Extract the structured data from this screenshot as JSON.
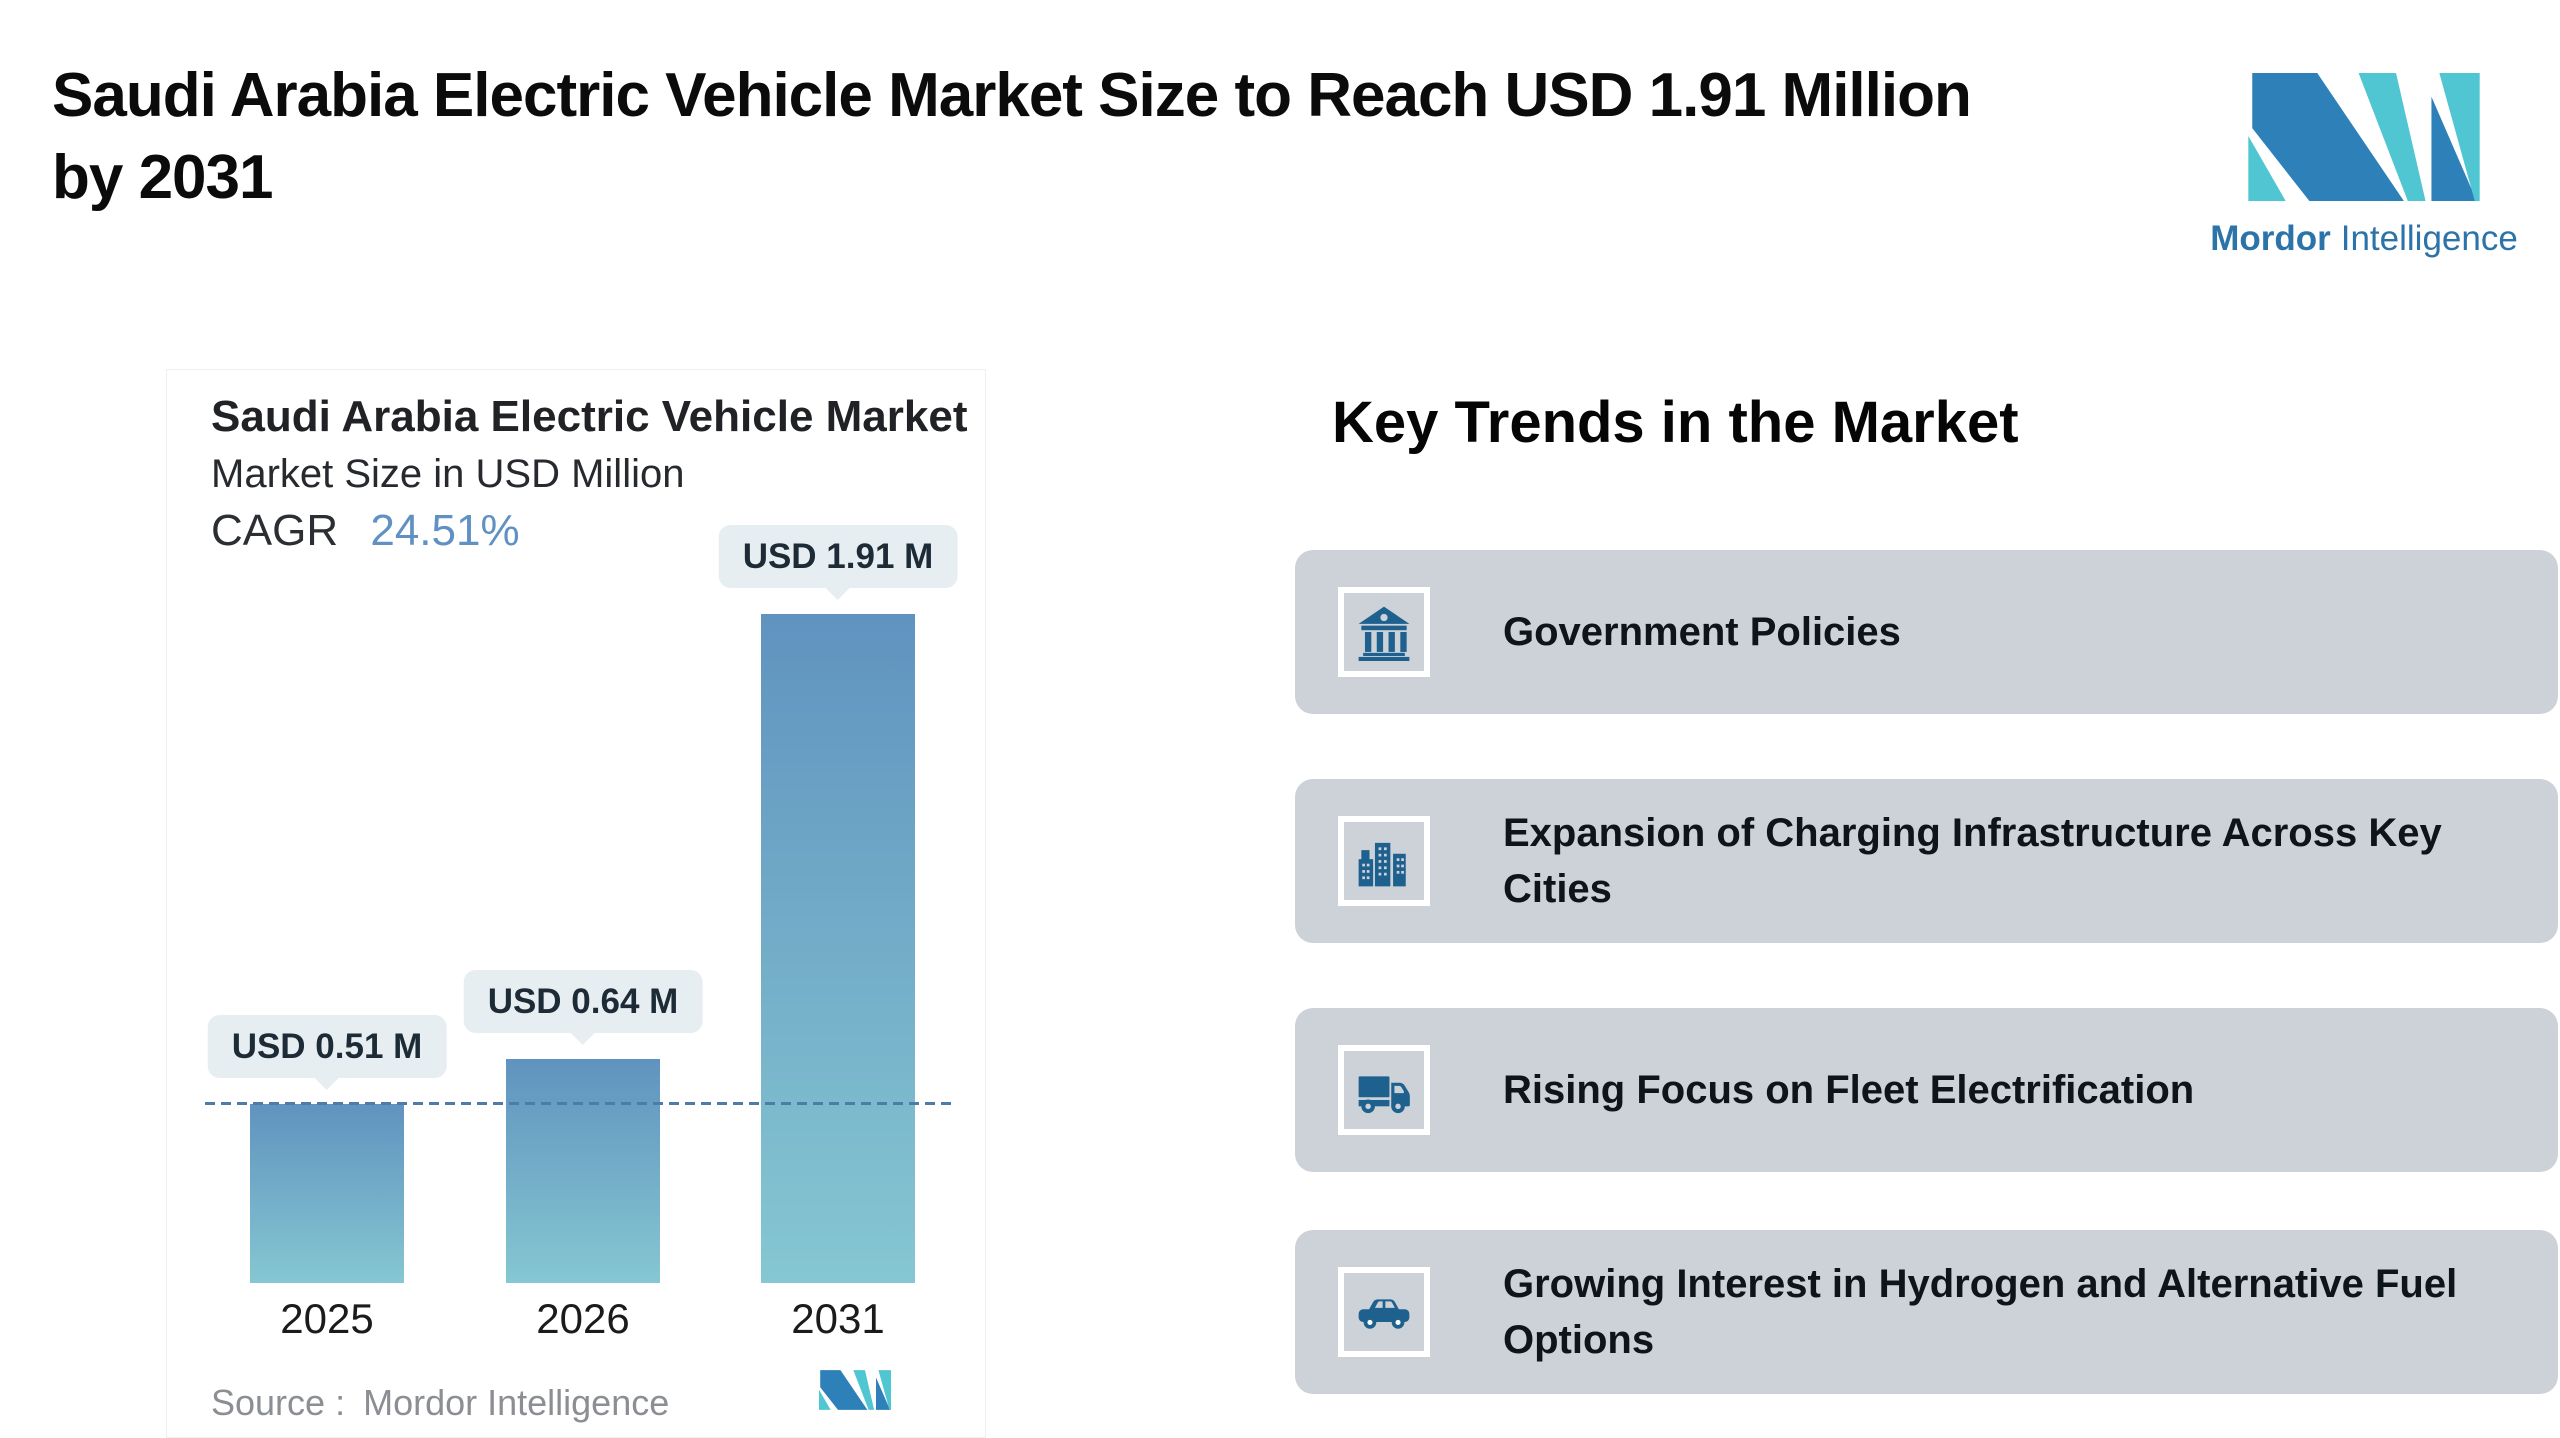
{
  "header": {
    "title_line1": "Saudi Arabia Electric Vehicle Market Size to Reach USD 1.91 Million",
    "title_line2": "by 2031"
  },
  "logo": {
    "brand_bold": "Mordor",
    "brand_light": "Intelligence"
  },
  "chart_data": {
    "type": "bar",
    "title": "Saudi Arabia Electric Vehicle Market",
    "subtitle": "Market Size in USD Million",
    "cagr_label": "CAGR",
    "cagr_value": "24.51%",
    "unit": "USD Million",
    "categories": [
      "2025",
      "2026",
      "2031"
    ],
    "values": [
      0.51,
      0.64,
      1.91
    ],
    "bar_labels": [
      "USD 0.51 M",
      "USD 0.64 M",
      "USD 1.91 M"
    ],
    "ylim": [
      0,
      2
    ],
    "grid": false,
    "legend": "none",
    "reference_line": {
      "style": "dashed",
      "value": 0.51
    },
    "source_prefix": "Source :",
    "source": "Mordor Intelligence"
  },
  "key_trends": {
    "heading": "Key Trends in the Market",
    "items": [
      {
        "icon": "bank-icon",
        "lines": [
          "Government Policies"
        ]
      },
      {
        "icon": "city-buildings-icon",
        "lines": [
          "Expansion of Charging Infrastructure Across Key",
          "Cities"
        ]
      },
      {
        "icon": "truck-icon",
        "lines": [
          "Rising Focus on Fleet Electrification"
        ]
      },
      {
        "icon": "car-icon",
        "lines": [
          "Growing Interest in Hydrogen and Alternative Fuel",
          "Options"
        ]
      }
    ]
  },
  "colors": {
    "bar_gradient_top": "#6093bf",
    "bar_gradient_bottom": "#85c7d2",
    "dashed_line": "#4e7ca8",
    "cagr_accent": "#6091c2",
    "tooltip_bg": "#e7eef2",
    "tooltip_text": "#1c2b36",
    "card_bg": "#cdd2d9",
    "icon_blue": "#1f618e",
    "logo_blue": "#2e80b9",
    "logo_teal": "#4fc6d1",
    "source_gray": "#8b8e92"
  }
}
